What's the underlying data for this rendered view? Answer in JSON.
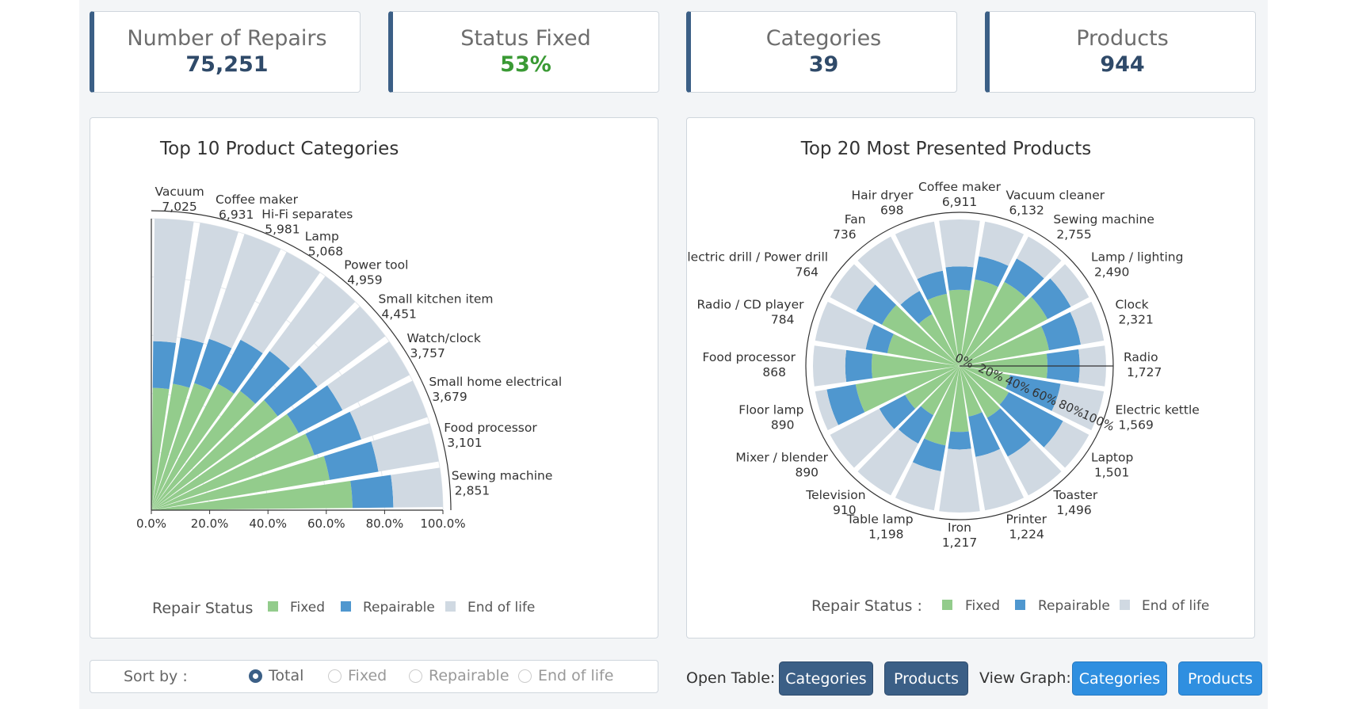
{
  "kpis": [
    {
      "label": "Number of Repairs",
      "value": "75,251",
      "accent": "#2f4a69"
    },
    {
      "label": "Status Fixed",
      "value": "53%",
      "accent": "#3a9a34"
    },
    {
      "label": "Categories",
      "value": "39",
      "accent": "#2f4a69"
    },
    {
      "label": "Products",
      "value": "944",
      "accent": "#2f4a69"
    }
  ],
  "colors": {
    "fixed": "#93cc8c",
    "repairable": "#4f97cf",
    "end_of_life": "#d0d9e2"
  },
  "chart_data": [
    {
      "type": "bar",
      "subtype": "polar-quarter",
      "title": "Top 10 Product Categories",
      "categories": [
        "Vacuum",
        "Coffee maker",
        "Hi-Fi separates",
        "Lamp",
        "Power tool",
        "Small kitchen item",
        "Watch/clock",
        "Small home electrical",
        "Food processor",
        "Sewing machine"
      ],
      "totals": [
        "7,025",
        "6,931",
        "5,981",
        "5,068",
        "4,959",
        "4,451",
        "3,757",
        "3,679",
        "3,101",
        "2,851"
      ],
      "series": [
        {
          "name": "Fixed",
          "values": [
            0.42,
            0.44,
            0.46,
            0.49,
            0.51,
            0.54,
            0.57,
            0.59,
            0.62,
            0.69
          ]
        },
        {
          "name": "Repairable",
          "values": [
            0.16,
            0.16,
            0.16,
            0.17,
            0.17,
            0.17,
            0.17,
            0.17,
            0.17,
            0.14
          ]
        },
        {
          "name": "End of life",
          "values": [
            0.42,
            0.4,
            0.38,
            0.34,
            0.32,
            0.29,
            0.26,
            0.24,
            0.21,
            0.17
          ]
        }
      ],
      "radial_ticks": [
        "0.0%",
        "20.0%",
        "40.0%",
        "60.0%",
        "80.0%",
        "100.0%"
      ],
      "legend_title": "Repair Status",
      "legend": [
        "Fixed",
        "Repairable",
        "End of life"
      ]
    },
    {
      "type": "bar",
      "subtype": "polar",
      "title": "Top 20 Most Presented Products",
      "categories": [
        "Coffee maker",
        "Vacuum cleaner",
        "Sewing machine",
        "Lamp / lighting",
        "Clock",
        "Radio",
        "Electric kettle",
        "Laptop",
        "Toaster",
        "Printer",
        "Iron",
        "Table lamp",
        "Television",
        "Mixer / blender",
        "Floor lamp",
        "Food processor",
        "Radio / CD player",
        "Electric drill / Power drill",
        "Fan",
        "Hair dryer"
      ],
      "totals": [
        "6,911",
        "6,132",
        "2,755",
        "2,490",
        "2,321",
        "1,727",
        "1,569",
        "1,501",
        "1,496",
        "1,224",
        "1,217",
        "1,198",
        "910",
        "890",
        "890",
        "868",
        "784",
        "764",
        "736",
        "698"
      ],
      "series": [
        {
          "name": "Fixed",
          "values": [
            0.52,
            0.6,
            0.65,
            0.68,
            0.62,
            0.6,
            0.35,
            0.38,
            0.4,
            0.35,
            0.45,
            0.55,
            0.38,
            0.42,
            0.72,
            0.6,
            0.5,
            0.6,
            0.4,
            0.5
          ]
        },
        {
          "name": "Repairable",
          "values": [
            0.16,
            0.16,
            0.18,
            0.18,
            0.22,
            0.22,
            0.35,
            0.42,
            0.3,
            0.28,
            0.12,
            0.18,
            0.22,
            0.2,
            0.2,
            0.18,
            0.15,
            0.2,
            0.18,
            0.16
          ]
        },
        {
          "name": "End of life",
          "values": [
            0.32,
            0.24,
            0.17,
            0.14,
            0.16,
            0.18,
            0.3,
            0.2,
            0.3,
            0.37,
            0.43,
            0.27,
            0.4,
            0.38,
            0.08,
            0.22,
            0.35,
            0.2,
            0.42,
            0.34
          ]
        }
      ],
      "radial_ticks": [
        "0%",
        "20%",
        "40%",
        "60%",
        "80%",
        "100%"
      ],
      "legend_title": "Repair Status :",
      "legend": [
        "Fixed",
        "Repairable",
        "End of life"
      ]
    }
  ],
  "controls": {
    "sort_label": "Sort by :",
    "sort_options": [
      {
        "label": "Total",
        "selected": true
      },
      {
        "label": "Fixed",
        "selected": false
      },
      {
        "label": "Repairable",
        "selected": false
      },
      {
        "label": "End of life",
        "selected": false
      }
    ],
    "open_table_label": "Open Table:",
    "view_graph_label": "View Graph:",
    "open_table_buttons": [
      "Categories",
      "Products"
    ],
    "view_graph_buttons": [
      "Categories",
      "Products"
    ]
  }
}
